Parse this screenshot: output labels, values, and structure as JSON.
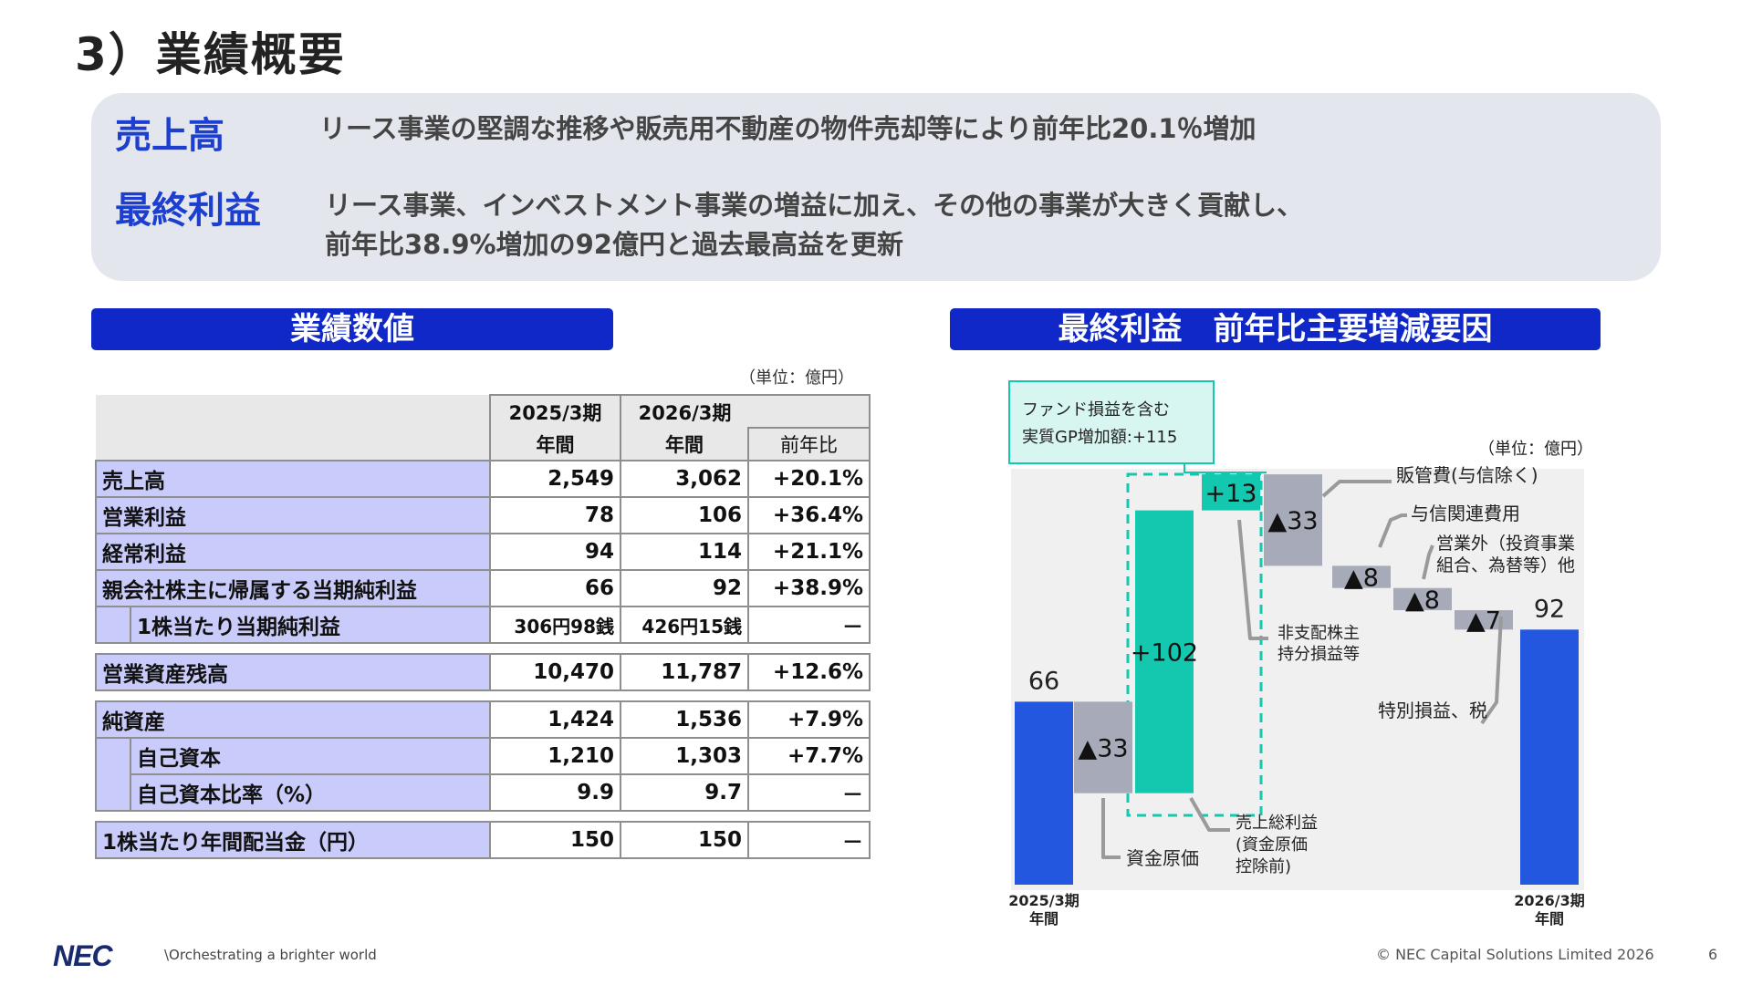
{
  "title": "3）業績概要",
  "summary": {
    "sales_label": "売上高",
    "sales_text": "リース事業の堅調な推移や販売用不動産の物件売却等により前年比20.1％増加",
    "profit_label": "最終利益",
    "profit_text_1": "リース事業、インベストメント事業の増益に加え、その他の事業が大きく貢献し、",
    "profit_text_2": "前年比38.9%増加の92億円と過去最高益を更新"
  },
  "left_section": {
    "header": "業績数値",
    "unit": "（単位：億円）",
    "col_fy2025": "2025/3期",
    "col_fy2026": "2026/3期",
    "col_annual_a": "年間",
    "col_annual_b": "年間",
    "col_yoy": "前年比",
    "rows": [
      {
        "label": "売上高",
        "fy2025": "2,549",
        "fy2026": "3,062",
        "yoy": "+20.1%"
      },
      {
        "label": "営業利益",
        "fy2025": "78",
        "fy2026": "106",
        "yoy": "+36.4%"
      },
      {
        "label": "経常利益",
        "fy2025": "94",
        "fy2026": "114",
        "yoy": "+21.1%"
      },
      {
        "label": "親会社株主に帰属する当期純利益",
        "fy2025": "66",
        "fy2026": "92",
        "yoy": "+38.9%"
      },
      {
        "label": "1株当たり当期純利益",
        "fy2025": "306円98銭",
        "fy2026": "426円15銭",
        "yoy": "－"
      },
      {
        "label": "営業資産残高",
        "fy2025": "10,470",
        "fy2026": "11,787",
        "yoy": "+12.6%"
      },
      {
        "label": "純資産",
        "fy2025": "1,424",
        "fy2026": "1,536",
        "yoy": "+7.9%"
      },
      {
        "label": "自己資本",
        "fy2025": "1,210",
        "fy2026": "1,303",
        "yoy": "+7.7%"
      },
      {
        "label": "自己資本比率（%）",
        "fy2025": "9.9",
        "fy2026": "9.7",
        "yoy": "－"
      },
      {
        "label": "1株当たり年間配当金（円）",
        "fy2025": "150",
        "fy2026": "150",
        "yoy": "－"
      }
    ]
  },
  "right_section": {
    "header": "最終利益　前年比主要増減要因",
    "unit": "（単位：億円）",
    "callout_line1": "ファンド損益を含む",
    "callout_line2": "実質GP増加額:+115",
    "colors": {
      "total": "#2457e0",
      "increase": "#14c8b0",
      "decrease": "#a7aab8",
      "leader": "#9a9a9a",
      "callout_border": "#14c8b0",
      "callout_fill": "#d8f6f1"
    }
  },
  "chart_data": {
    "type": "waterfall",
    "unit": "億円",
    "steps": [
      {
        "value": 66,
        "kind": "total",
        "label": "66",
        "axis_1": "2025/3期",
        "axis_2": "年間"
      },
      {
        "value": -33,
        "kind": "delta",
        "label": "▲33",
        "note": "資金原価"
      },
      {
        "value": 102,
        "kind": "delta",
        "label": "+102",
        "note_1": "売上総利益",
        "note_2": "(資金原価",
        "note_3": "控除前)"
      },
      {
        "value": 13,
        "kind": "delta",
        "label": "+13",
        "note_1": "非支配株主",
        "note_2": "持分損益等"
      },
      {
        "value": -33,
        "kind": "delta",
        "label": "▲33",
        "note": "販管費(与信除く)"
      },
      {
        "value": -8,
        "kind": "delta",
        "label": "▲8",
        "note": "与信関連費用"
      },
      {
        "value": -8,
        "kind": "delta",
        "label": "▲8",
        "note_1": "営業外（投資事業",
        "note_2": "組合、為替等）他"
      },
      {
        "value": -7,
        "kind": "delta",
        "label": "▲7",
        "note": "特別損益、税"
      },
      {
        "value": 92,
        "kind": "total",
        "label": "92",
        "axis_1": "2026/3期",
        "axis_2": "年間"
      }
    ]
  },
  "footer": {
    "logo": "NEC",
    "tagline": "\\Orchestrating a brighter world",
    "copyright": "© NEC Capital Solutions Limited 2026",
    "page": "6"
  }
}
